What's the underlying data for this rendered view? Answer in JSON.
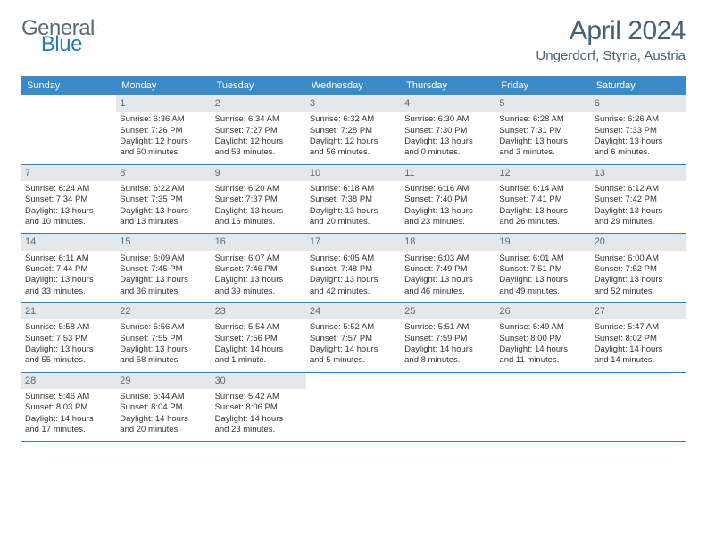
{
  "logo": {
    "text1": "General",
    "text2": "Blue"
  },
  "title": "April 2024",
  "location": "Ungerdorf, Styria, Austria",
  "weekdays": [
    "Sunday",
    "Monday",
    "Tuesday",
    "Wednesday",
    "Thursday",
    "Friday",
    "Saturday"
  ],
  "colors": {
    "header_bg": "#3a8ac8",
    "header_text": "#ffffff",
    "daynum_bg": "#e5e8ea",
    "daynum_text": "#5a6a78",
    "border": "#3a7cb0",
    "title_color": "#466077",
    "logo_gray": "#5a6a78",
    "logo_blue": "#2a7ab9"
  },
  "weeks": [
    [
      {
        "num": "",
        "lines": []
      },
      {
        "num": "1",
        "lines": [
          "Sunrise: 6:36 AM",
          "Sunset: 7:26 PM",
          "Daylight: 12 hours",
          "and 50 minutes."
        ]
      },
      {
        "num": "2",
        "lines": [
          "Sunrise: 6:34 AM",
          "Sunset: 7:27 PM",
          "Daylight: 12 hours",
          "and 53 minutes."
        ]
      },
      {
        "num": "3",
        "lines": [
          "Sunrise: 6:32 AM",
          "Sunset: 7:28 PM",
          "Daylight: 12 hours",
          "and 56 minutes."
        ]
      },
      {
        "num": "4",
        "lines": [
          "Sunrise: 6:30 AM",
          "Sunset: 7:30 PM",
          "Daylight: 13 hours",
          "and 0 minutes."
        ]
      },
      {
        "num": "5",
        "lines": [
          "Sunrise: 6:28 AM",
          "Sunset: 7:31 PM",
          "Daylight: 13 hours",
          "and 3 minutes."
        ]
      },
      {
        "num": "6",
        "lines": [
          "Sunrise: 6:26 AM",
          "Sunset: 7:33 PM",
          "Daylight: 13 hours",
          "and 6 minutes."
        ]
      }
    ],
    [
      {
        "num": "7",
        "lines": [
          "Sunrise: 6:24 AM",
          "Sunset: 7:34 PM",
          "Daylight: 13 hours",
          "and 10 minutes."
        ]
      },
      {
        "num": "8",
        "lines": [
          "Sunrise: 6:22 AM",
          "Sunset: 7:35 PM",
          "Daylight: 13 hours",
          "and 13 minutes."
        ]
      },
      {
        "num": "9",
        "lines": [
          "Sunrise: 6:20 AM",
          "Sunset: 7:37 PM",
          "Daylight: 13 hours",
          "and 16 minutes."
        ]
      },
      {
        "num": "10",
        "lines": [
          "Sunrise: 6:18 AM",
          "Sunset: 7:38 PM",
          "Daylight: 13 hours",
          "and 20 minutes."
        ]
      },
      {
        "num": "11",
        "lines": [
          "Sunrise: 6:16 AM",
          "Sunset: 7:40 PM",
          "Daylight: 13 hours",
          "and 23 minutes."
        ]
      },
      {
        "num": "12",
        "lines": [
          "Sunrise: 6:14 AM",
          "Sunset: 7:41 PM",
          "Daylight: 13 hours",
          "and 26 minutes."
        ]
      },
      {
        "num": "13",
        "lines": [
          "Sunrise: 6:12 AM",
          "Sunset: 7:42 PM",
          "Daylight: 13 hours",
          "and 29 minutes."
        ]
      }
    ],
    [
      {
        "num": "14",
        "lines": [
          "Sunrise: 6:11 AM",
          "Sunset: 7:44 PM",
          "Daylight: 13 hours",
          "and 33 minutes."
        ]
      },
      {
        "num": "15",
        "lines": [
          "Sunrise: 6:09 AM",
          "Sunset: 7:45 PM",
          "Daylight: 13 hours",
          "and 36 minutes."
        ]
      },
      {
        "num": "16",
        "lines": [
          "Sunrise: 6:07 AM",
          "Sunset: 7:46 PM",
          "Daylight: 13 hours",
          "and 39 minutes."
        ]
      },
      {
        "num": "17",
        "lines": [
          "Sunrise: 6:05 AM",
          "Sunset: 7:48 PM",
          "Daylight: 13 hours",
          "and 42 minutes."
        ]
      },
      {
        "num": "18",
        "lines": [
          "Sunrise: 6:03 AM",
          "Sunset: 7:49 PM",
          "Daylight: 13 hours",
          "and 46 minutes."
        ]
      },
      {
        "num": "19",
        "lines": [
          "Sunrise: 6:01 AM",
          "Sunset: 7:51 PM",
          "Daylight: 13 hours",
          "and 49 minutes."
        ]
      },
      {
        "num": "20",
        "lines": [
          "Sunrise: 6:00 AM",
          "Sunset: 7:52 PM",
          "Daylight: 13 hours",
          "and 52 minutes."
        ]
      }
    ],
    [
      {
        "num": "21",
        "lines": [
          "Sunrise: 5:58 AM",
          "Sunset: 7:53 PM",
          "Daylight: 13 hours",
          "and 55 minutes."
        ]
      },
      {
        "num": "22",
        "lines": [
          "Sunrise: 5:56 AM",
          "Sunset: 7:55 PM",
          "Daylight: 13 hours",
          "and 58 minutes."
        ]
      },
      {
        "num": "23",
        "lines": [
          "Sunrise: 5:54 AM",
          "Sunset: 7:56 PM",
          "Daylight: 14 hours",
          "and 1 minute."
        ]
      },
      {
        "num": "24",
        "lines": [
          "Sunrise: 5:52 AM",
          "Sunset: 7:57 PM",
          "Daylight: 14 hours",
          "and 5 minutes."
        ]
      },
      {
        "num": "25",
        "lines": [
          "Sunrise: 5:51 AM",
          "Sunset: 7:59 PM",
          "Daylight: 14 hours",
          "and 8 minutes."
        ]
      },
      {
        "num": "26",
        "lines": [
          "Sunrise: 5:49 AM",
          "Sunset: 8:00 PM",
          "Daylight: 14 hours",
          "and 11 minutes."
        ]
      },
      {
        "num": "27",
        "lines": [
          "Sunrise: 5:47 AM",
          "Sunset: 8:02 PM",
          "Daylight: 14 hours",
          "and 14 minutes."
        ]
      }
    ],
    [
      {
        "num": "28",
        "lines": [
          "Sunrise: 5:46 AM",
          "Sunset: 8:03 PM",
          "Daylight: 14 hours",
          "and 17 minutes."
        ]
      },
      {
        "num": "29",
        "lines": [
          "Sunrise: 5:44 AM",
          "Sunset: 8:04 PM",
          "Daylight: 14 hours",
          "and 20 minutes."
        ]
      },
      {
        "num": "30",
        "lines": [
          "Sunrise: 5:42 AM",
          "Sunset: 8:06 PM",
          "Daylight: 14 hours",
          "and 23 minutes."
        ]
      },
      {
        "num": "",
        "lines": []
      },
      {
        "num": "",
        "lines": []
      },
      {
        "num": "",
        "lines": []
      },
      {
        "num": "",
        "lines": []
      }
    ]
  ]
}
